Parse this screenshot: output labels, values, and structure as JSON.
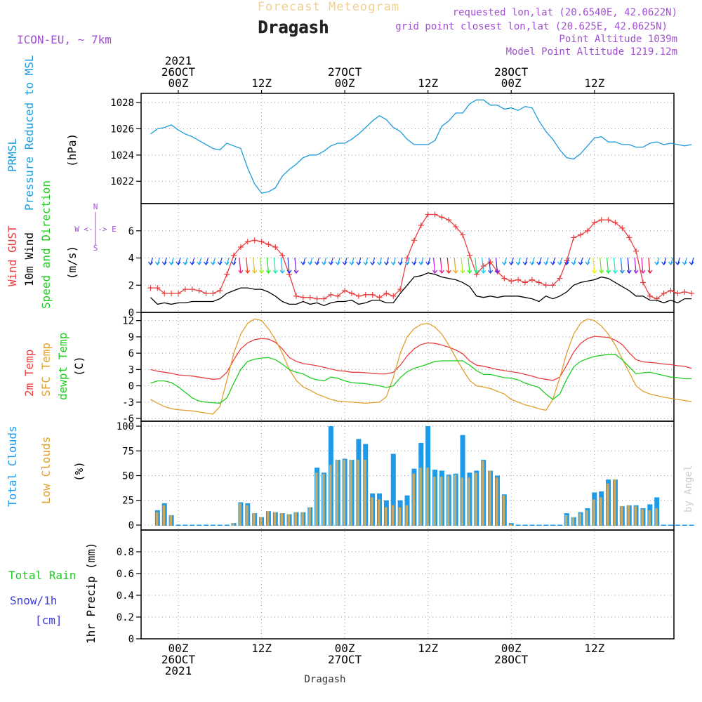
{
  "header": {
    "title": "Forecast Meteogram",
    "station": "Dragash",
    "model": "ICON-EU, ~ 7km",
    "requested": "requested lon,lat (20.6540E, 42.0622N)",
    "gridpoint": "grid point closest lon,lat (20.625E, 42.0625N)",
    "point_altitude": "Point Altitude 1039m",
    "model_altitude": "Model Point Altitude 1219.12m",
    "footer": "Dragash",
    "watermark": "by Angel"
  },
  "time_axis": {
    "top_labels": [
      {
        "lines": [
          "2021",
          "26OCT",
          "00Z"
        ]
      },
      {
        "lines": [
          "",
          "",
          "12Z"
        ]
      },
      {
        "lines": [
          "",
          "27OCT",
          "00Z"
        ]
      },
      {
        "lines": [
          "",
          "",
          "12Z"
        ]
      },
      {
        "lines": [
          "",
          "28OCT",
          "00Z"
        ]
      },
      {
        "lines": [
          "",
          "",
          "12Z"
        ]
      }
    ],
    "bottom_labels": [
      {
        "lines": [
          "00Z",
          "26OCT",
          "2021"
        ]
      },
      {
        "lines": [
          "12Z",
          "",
          ""
        ]
      },
      {
        "lines": [
          "00Z",
          "27OCT",
          ""
        ]
      },
      {
        "lines": [
          "12Z",
          "",
          ""
        ]
      },
      {
        "lines": [
          "00Z",
          "28OCT",
          ""
        ]
      },
      {
        "lines": [
          "12Z",
          "",
          ""
        ]
      }
    ]
  },
  "colors": {
    "pressure": "#1e9bdc",
    "gust": "#e84040",
    "wind": "#000000",
    "temp2m": "#e84040",
    "sfctemp": "#e0a030",
    "dewpt": "#22cc22",
    "total_clouds": "#1e9be8",
    "low_clouds": "#c8aa64",
    "rain_label": "#22cc22",
    "snow_label": "#3c3cdc",
    "compass": "#a050d0",
    "title": "#f0d090",
    "info": "#a050d0"
  },
  "chart_data": [
    {
      "type": "line",
      "panel": "pressure",
      "ylabel_lines": [
        "PRMSL",
        "Pressure Reduced to MSL"
      ],
      "unit": "(hPa)",
      "ylim": [
        1020.3,
        1028.7
      ],
      "yticks": [
        1022,
        1024,
        1026,
        1028
      ],
      "x_hours": [
        -4,
        -3,
        -2,
        -1,
        0,
        1,
        2,
        3,
        4,
        5,
        6,
        7,
        8,
        9,
        10,
        11,
        12,
        13,
        14,
        15,
        16,
        17,
        18,
        19,
        20,
        21,
        22,
        23,
        24,
        25,
        26,
        27,
        28,
        29,
        30,
        31,
        32,
        33,
        34,
        35,
        36,
        37,
        38,
        39,
        40,
        41,
        42,
        43,
        44,
        45,
        46,
        47,
        48,
        49,
        50,
        51,
        52,
        53,
        54,
        55,
        56,
        57,
        58,
        59,
        60,
        61,
        62,
        63,
        64,
        65,
        66,
        67,
        68,
        69,
        70,
        71,
        72,
        73,
        74
      ],
      "series": [
        {
          "values": [
            1025.6,
            1026.0,
            1026.1,
            1026.3,
            1025.9,
            1025.6,
            1025.4,
            1025.1,
            1024.8,
            1024.5,
            1024.4,
            1024.9,
            1024.7,
            1024.5,
            1023.0,
            1021.8,
            1021.1,
            1021.2,
            1021.5,
            1022.4,
            1022.9,
            1023.3,
            1023.8,
            1024.0,
            1024.0,
            1024.3,
            1024.7,
            1024.9,
            1024.9,
            1025.2,
            1025.6,
            1026.1,
            1026.6,
            1027.0,
            1026.7,
            1026.1,
            1025.8,
            1025.2,
            1024.8,
            1024.8,
            1024.8,
            1025.1,
            1026.2,
            1026.6,
            1027.2,
            1027.2,
            1027.9,
            1028.2,
            1028.2,
            1027.8,
            1027.8,
            1027.5,
            1027.6,
            1027.4,
            1027.7,
            1027.6,
            1026.6,
            1025.8,
            1025.2,
            1024.4,
            1023.8,
            1023.7,
            1024.1,
            1024.7,
            1025.3,
            1025.4,
            1025.0,
            1025.0,
            1024.8,
            1024.8,
            1024.6,
            1024.6,
            1024.9,
            1025.0,
            1024.8,
            1024.9,
            1024.8,
            1024.7,
            1024.8
          ]
        }
      ]
    },
    {
      "type": "line",
      "panel": "wind",
      "ylabel_lines": [
        "Wind GUST",
        "10m Wind",
        "Speed and Direction"
      ],
      "unit": "(m/s)",
      "compass": [
        "N",
        "W <-|-> E",
        "S"
      ],
      "ylim": [
        0,
        8
      ],
      "yticks": [
        0,
        2,
        4,
        6
      ],
      "x_hours": [
        -4,
        -3,
        -2,
        -1,
        0,
        1,
        2,
        3,
        4,
        5,
        6,
        7,
        8,
        9,
        10,
        11,
        12,
        13,
        14,
        15,
        16,
        17,
        18,
        19,
        20,
        21,
        22,
        23,
        24,
        25,
        26,
        27,
        28,
        29,
        30,
        31,
        32,
        33,
        34,
        35,
        36,
        37,
        38,
        39,
        40,
        41,
        42,
        43,
        44,
        45,
        46,
        47,
        48,
        49,
        50,
        51,
        52,
        53,
        54,
        55,
        56,
        57,
        58,
        59,
        60,
        61,
        62,
        63,
        64,
        65,
        66,
        67,
        68,
        69,
        70,
        71,
        72,
        73,
        74
      ],
      "series": [
        {
          "name": "Wind GUST",
          "values": [
            1.8,
            1.8,
            1.4,
            1.4,
            1.4,
            1.7,
            1.7,
            1.6,
            1.4,
            1.4,
            1.6,
            2.8,
            4.2,
            4.8,
            5.2,
            5.3,
            5.2,
            5.0,
            4.8,
            4.2,
            2.8,
            1.2,
            1.1,
            1.1,
            1.0,
            1.0,
            1.3,
            1.2,
            1.6,
            1.4,
            1.2,
            1.3,
            1.3,
            1.1,
            1.4,
            1.2,
            1.7,
            4.0,
            5.3,
            6.4,
            7.2,
            7.2,
            7.0,
            6.8,
            6.3,
            5.7,
            4.2,
            2.8,
            3.4,
            3.7,
            3.0,
            2.5,
            2.3,
            2.4,
            2.2,
            2.4,
            2.2,
            2.0,
            2.0,
            2.5,
            3.8,
            5.5,
            5.7,
            6.0,
            6.6,
            6.8,
            6.8,
            6.6,
            6.2,
            5.5,
            4.5,
            2.2,
            1.2,
            1.0,
            1.4,
            1.6,
            1.4,
            1.5,
            1.4
          ]
        },
        {
          "name": "10m Wind",
          "values": [
            1.1,
            0.6,
            0.7,
            0.6,
            0.7,
            0.7,
            0.8,
            0.8,
            0.8,
            0.8,
            1.0,
            1.4,
            1.6,
            1.8,
            1.8,
            1.7,
            1.7,
            1.5,
            1.2,
            0.8,
            0.6,
            0.6,
            0.8,
            0.6,
            0.7,
            0.5,
            0.7,
            0.8,
            0.8,
            0.9,
            0.6,
            0.7,
            0.9,
            0.9,
            0.7,
            0.7,
            1.4,
            2.0,
            2.6,
            2.7,
            2.9,
            2.8,
            2.6,
            2.5,
            2.4,
            2.2,
            1.9,
            1.2,
            1.1,
            1.2,
            1.1,
            1.2,
            1.2,
            1.2,
            1.1,
            1.0,
            0.8,
            1.2,
            1.0,
            1.2,
            1.5,
            2.0,
            2.2,
            2.3,
            2.4,
            2.6,
            2.5,
            2.2,
            1.9,
            1.6,
            1.2,
            1.2,
            0.9,
            0.9,
            0.7,
            0.9,
            0.7,
            1.0,
            1.0
          ]
        }
      ]
    },
    {
      "type": "line",
      "panel": "temperature",
      "ylabel_lines": [
        "2m Temp",
        "SFC Temp",
        "dewpt Temp"
      ],
      "unit": "(C)",
      "ylim": [
        -6.5,
        13.5
      ],
      "yticks": [
        -6,
        -3,
        0,
        3,
        6,
        9,
        12
      ],
      "x_hours": [
        -4,
        -3,
        -2,
        -1,
        0,
        1,
        2,
        3,
        4,
        5,
        6,
        7,
        8,
        9,
        10,
        11,
        12,
        13,
        14,
        15,
        16,
        17,
        18,
        19,
        20,
        21,
        22,
        23,
        24,
        25,
        26,
        27,
        28,
        29,
        30,
        31,
        32,
        33,
        34,
        35,
        36,
        37,
        38,
        39,
        40,
        41,
        42,
        43,
        44,
        45,
        46,
        47,
        48,
        49,
        50,
        51,
        52,
        53,
        54,
        55,
        56,
        57,
        58,
        59,
        60,
        61,
        62,
        63,
        64,
        65,
        66,
        67,
        68,
        69,
        70,
        71,
        72,
        73,
        74
      ],
      "series": [
        {
          "name": "2m Temp",
          "values": [
            3.0,
            2.7,
            2.5,
            2.3,
            2.0,
            1.9,
            1.8,
            1.6,
            1.4,
            1.2,
            1.3,
            2.5,
            4.8,
            6.8,
            7.9,
            8.5,
            8.7,
            8.6,
            8.0,
            6.8,
            5.2,
            4.5,
            4.1,
            3.9,
            3.7,
            3.4,
            3.1,
            2.8,
            2.7,
            2.5,
            2.5,
            2.4,
            2.3,
            2.2,
            2.2,
            2.5,
            3.8,
            5.5,
            6.8,
            7.6,
            7.9,
            7.8,
            7.5,
            7.1,
            6.6,
            5.9,
            4.6,
            3.8,
            3.6,
            3.3,
            3.0,
            2.8,
            2.6,
            2.4,
            2.1,
            1.8,
            1.4,
            1.2,
            1.0,
            1.6,
            3.8,
            6.2,
            7.8,
            8.7,
            9.1,
            9.0,
            8.9,
            8.4,
            7.6,
            6.1,
            4.8,
            4.4,
            4.3,
            4.2,
            4.0,
            3.9,
            3.7,
            3.6,
            3.2
          ]
        },
        {
          "name": "SFC Temp",
          "values": [
            -2.5,
            -3.2,
            -3.8,
            -4.2,
            -4.4,
            -4.5,
            -4.6,
            -4.8,
            -5.0,
            -5.2,
            -3.8,
            1.0,
            6.0,
            9.5,
            11.5,
            12.3,
            12.0,
            10.5,
            8.5,
            6.0,
            3.0,
            1.0,
            -0.2,
            -0.8,
            -1.5,
            -2.0,
            -2.5,
            -2.8,
            -2.9,
            -3.0,
            -3.1,
            -3.2,
            -3.1,
            -3.0,
            -2.0,
            1.5,
            6.0,
            9.0,
            10.5,
            11.3,
            11.5,
            10.8,
            9.5,
            7.5,
            5.2,
            3.0,
            1.0,
            0.0,
            -0.2,
            -0.5,
            -1.0,
            -1.5,
            -2.5,
            -3.0,
            -3.5,
            -3.8,
            -4.2,
            -4.5,
            -2.5,
            1.5,
            6.0,
            9.5,
            11.5,
            12.3,
            12.0,
            11.0,
            9.5,
            7.5,
            5.0,
            2.5,
            0.0,
            -1.0,
            -1.5,
            -1.8,
            -2.1,
            -2.3,
            -2.5,
            -2.7,
            -2.9
          ]
        },
        {
          "name": "dewpt Temp",
          "values": [
            0.5,
            0.9,
            0.9,
            0.6,
            -0.2,
            -1.2,
            -2.2,
            -2.8,
            -3.0,
            -3.1,
            -3.2,
            -2.2,
            0.5,
            3.0,
            4.5,
            4.9,
            5.1,
            5.2,
            4.8,
            4.0,
            3.0,
            2.5,
            2.2,
            1.5,
            1.1,
            0.9,
            1.6,
            1.4,
            0.9,
            0.6,
            0.5,
            0.4,
            0.2,
            0.0,
            -0.3,
            0.0,
            1.5,
            2.6,
            3.2,
            3.6,
            4.0,
            4.5,
            4.6,
            4.6,
            4.6,
            4.6,
            3.8,
            2.8,
            2.1,
            2.1,
            1.8,
            1.5,
            1.4,
            1.1,
            0.5,
            0.1,
            -0.3,
            -1.5,
            -2.5,
            -1.5,
            1.2,
            3.5,
            4.5,
            5.0,
            5.4,
            5.6,
            5.8,
            5.8,
            4.8,
            3.5,
            2.2,
            2.4,
            2.5,
            2.2,
            1.9,
            1.6,
            1.5,
            1.3,
            1.3
          ]
        }
      ]
    },
    {
      "type": "bar",
      "panel": "clouds",
      "ylabel_lines": [
        "Total Clouds",
        "Low Clouds"
      ],
      "unit": "(%)",
      "ylim": [
        -5,
        105
      ],
      "yticks": [
        0,
        25,
        50,
        75,
        100
      ],
      "x_hours": [
        -3,
        -2,
        -1,
        0,
        1,
        2,
        3,
        4,
        5,
        6,
        7,
        8,
        9,
        10,
        11,
        12,
        13,
        14,
        15,
        16,
        17,
        18,
        19,
        20,
        21,
        22,
        23,
        24,
        25,
        26,
        27,
        28,
        29,
        30,
        31,
        32,
        33,
        34,
        35,
        36,
        37,
        38,
        39,
        40,
        41,
        42,
        43,
        44,
        45,
        46,
        47,
        48,
        49,
        50,
        51,
        52,
        53,
        54,
        55,
        56,
        57,
        58,
        59,
        60,
        61,
        62,
        63,
        64,
        65,
        66,
        67,
        68,
        69,
        70,
        71,
        72,
        73,
        74
      ],
      "series": [
        {
          "name": "Total Clouds",
          "values": [
            15,
            22,
            10,
            0,
            0,
            0,
            0,
            0,
            0,
            0,
            0,
            2,
            23,
            22,
            12,
            8,
            14,
            13,
            12,
            11,
            13,
            13,
            18,
            58,
            53,
            100,
            66,
            67,
            66,
            87,
            82,
            32,
            32,
            25,
            72,
            25,
            30,
            57,
            83,
            100,
            56,
            55,
            51,
            52,
            91,
            53,
            55,
            66,
            55,
            50,
            31,
            2,
            0,
            0,
            0,
            0,
            0,
            0,
            0,
            12,
            8,
            13,
            17,
            33,
            34,
            46,
            46,
            19,
            20,
            20,
            17,
            21,
            28
          ]
        },
        {
          "name": "Low Clouds",
          "values": [
            13,
            20,
            10,
            0,
            0,
            0,
            0,
            0,
            0,
            0,
            0,
            2,
            22,
            20,
            12,
            8,
            14,
            13,
            12,
            11,
            13,
            13,
            18,
            53,
            52,
            61,
            66,
            66,
            66,
            66,
            66,
            28,
            26,
            18,
            20,
            18,
            20,
            52,
            58,
            58,
            49,
            49,
            50,
            51,
            48,
            48,
            53,
            65,
            55,
            48,
            30,
            1,
            0,
            0,
            0,
            0,
            0,
            0,
            0,
            10,
            8,
            12,
            15,
            26,
            28,
            42,
            46,
            19,
            20,
            19,
            16,
            15,
            17
          ]
        }
      ]
    },
    {
      "type": "bar",
      "panel": "precip",
      "ylabel_lines": [
        "1hr Precip (mm)"
      ],
      "side_labels": {
        "rain": "Total Rain",
        "snow": "Snow/1h",
        "snow_unit": "[cm]"
      },
      "ylim": [
        0,
        1.0
      ],
      "yticks": [
        0,
        0.2,
        0.4,
        0.6,
        0.8
      ],
      "ytick_labels": [
        "0",
        "0.2",
        "0.4",
        "0.6",
        "0.8"
      ],
      "series": [
        {
          "name": "Total Rain",
          "values": []
        },
        {
          "name": "Snow/1h",
          "values": []
        }
      ]
    }
  ]
}
